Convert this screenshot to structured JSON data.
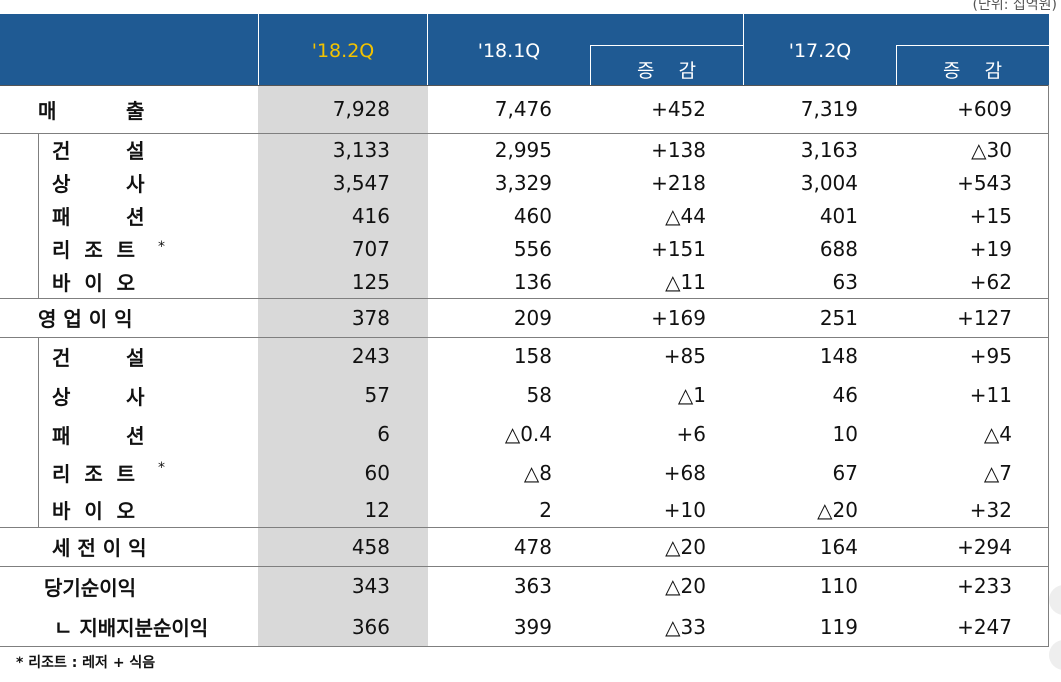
{
  "unit_note": "(단위: 십억원)",
  "headers": {
    "q1": "'18.2Q",
    "q2": "'18.1Q",
    "diff1": "증    감",
    "q3": "'17.2Q",
    "diff2": "증    감"
  },
  "colors": {
    "header_bg": "#1F5A93",
    "highlight": "#F2C200",
    "shade": "#D9D9D9"
  },
  "rows": [
    {
      "label": "매          출",
      "v": [
        "7,928",
        "7,476",
        "+452",
        "7,319",
        "+609"
      ]
    },
    {
      "label": "건        설",
      "v": [
        "3,133",
        "2,995",
        "+138",
        "3,163",
        "△30"
      ]
    },
    {
      "label": "상        사",
      "v": [
        "3,547",
        "3,329",
        "+218",
        "3,004",
        "+543"
      ]
    },
    {
      "label": "패        션",
      "v": [
        "416",
        "460",
        "△44",
        "401",
        "+15"
      ]
    },
    {
      "label": "리  조  트",
      "v": [
        "707",
        "556",
        "+151",
        "688",
        "+19"
      ]
    },
    {
      "label": "바  이  오",
      "v": [
        "125",
        "136",
        "△11",
        "63",
        "+62"
      ]
    },
    {
      "label": "영 업 이 익",
      "v": [
        "378",
        "209",
        "+169",
        "251",
        "+127"
      ]
    },
    {
      "label": "건        설",
      "v": [
        "243",
        "158",
        "+85",
        "148",
        "+95"
      ]
    },
    {
      "label": "상        사",
      "v": [
        "57",
        "58",
        "△1",
        "46",
        "+11"
      ]
    },
    {
      "label": "패        션",
      "v": [
        "6",
        "△0.4",
        "+6",
        "10",
        "△4"
      ]
    },
    {
      "label": "리  조  트",
      "v": [
        "60",
        "△8",
        "+68",
        "67",
        "△7"
      ]
    },
    {
      "label": "바  이  오",
      "v": [
        "12",
        "2",
        "+10",
        "△20",
        "+32"
      ]
    },
    {
      "label": "세 전 이 익",
      "v": [
        "458",
        "478",
        "△20",
        "164",
        "+294"
      ]
    },
    {
      "label": "당기순이익",
      "v": [
        "343",
        "363",
        "△20",
        "110",
        "+233"
      ]
    },
    {
      "label": "ㄴ 지배지분순이익",
      "v": [
        "366",
        "399",
        "△33",
        "119",
        "+247"
      ]
    }
  ],
  "resort_star": "*",
  "footnote": "* 리조트 : 레저 + 식음"
}
